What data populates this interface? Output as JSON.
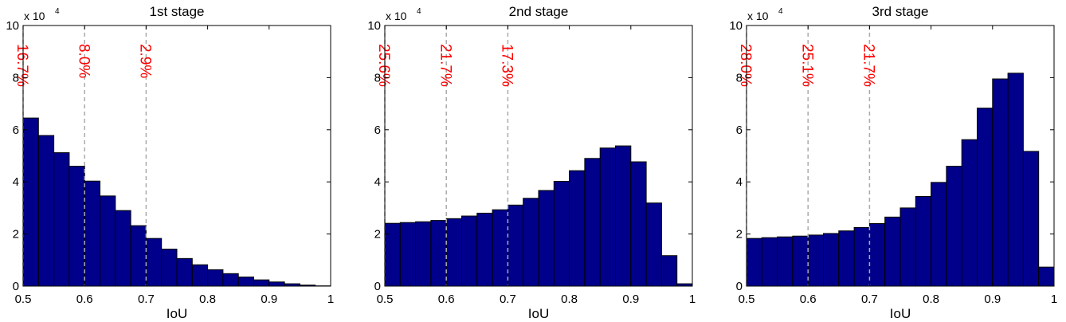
{
  "figure": {
    "xlabel": "IoU",
    "exponent_label": "x 10",
    "exponent_power": "4",
    "bar_color": "#00008B",
    "threshold_line_color": "#aaaaaa",
    "percent_label_color": "#ff0000"
  },
  "chart_data": [
    {
      "type": "bar",
      "title": "1st stage",
      "xlabel": "IoU",
      "ylabel": "",
      "xlim": [
        0.5,
        1.0
      ],
      "ylim": [
        0,
        100000
      ],
      "y_scale_factor": 10000,
      "bin_width": 0.025,
      "xticks": [
        "0.5",
        "0.6",
        "0.7",
        "0.8",
        "0.9",
        "1"
      ],
      "yticks": [
        "0",
        "2",
        "4",
        "6",
        "8",
        "10"
      ],
      "bin_starts": [
        0.5,
        0.525,
        0.55,
        0.575,
        0.6,
        0.625,
        0.65,
        0.675,
        0.7,
        0.725,
        0.75,
        0.775,
        0.8,
        0.825,
        0.85,
        0.875,
        0.9,
        0.925,
        0.95,
        0.975
      ],
      "values": [
        64500,
        57800,
        51200,
        46000,
        40300,
        34600,
        29000,
        23200,
        18300,
        14200,
        10600,
        8200,
        6300,
        4800,
        3500,
        2400,
        1600,
        900,
        400,
        100
      ],
      "thresholds": [
        {
          "x": 0.5,
          "label": "16.7%"
        },
        {
          "x": 0.6,
          "label": "8.0%"
        },
        {
          "x": 0.7,
          "label": "2.9%"
        }
      ]
    },
    {
      "type": "bar",
      "title": "2nd stage",
      "xlabel": "IoU",
      "ylabel": "",
      "xlim": [
        0.5,
        1.0
      ],
      "ylim": [
        0,
        100000
      ],
      "y_scale_factor": 10000,
      "bin_width": 0.025,
      "xticks": [
        "0.5",
        "0.6",
        "0.7",
        "0.8",
        "0.9",
        "1"
      ],
      "yticks": [
        "0",
        "2",
        "4",
        "6",
        "8",
        "10"
      ],
      "bin_starts": [
        0.5,
        0.525,
        0.55,
        0.575,
        0.6,
        0.625,
        0.65,
        0.675,
        0.7,
        0.725,
        0.75,
        0.775,
        0.8,
        0.825,
        0.85,
        0.875,
        0.9,
        0.925,
        0.95,
        0.975
      ],
      "values": [
        24100,
        24400,
        24700,
        25200,
        25900,
        26900,
        28000,
        29300,
        31100,
        33700,
        36700,
        40200,
        44300,
        49000,
        53000,
        53800,
        47700,
        31900,
        11700,
        900
      ],
      "thresholds": [
        {
          "x": 0.5,
          "label": "25.6%"
        },
        {
          "x": 0.6,
          "label": "21.7%"
        },
        {
          "x": 0.7,
          "label": "17.3%"
        }
      ]
    },
    {
      "type": "bar",
      "title": "3rd stage",
      "xlabel": "IoU",
      "ylabel": "",
      "xlim": [
        0.5,
        1.0
      ],
      "ylim": [
        0,
        100000
      ],
      "y_scale_factor": 10000,
      "bin_width": 0.025,
      "xticks": [
        "0.5",
        "0.6",
        "0.7",
        "0.8",
        "0.9",
        "1"
      ],
      "yticks": [
        "0",
        "2",
        "4",
        "6",
        "8",
        "10"
      ],
      "bin_starts": [
        0.5,
        0.525,
        0.55,
        0.575,
        0.6,
        0.625,
        0.65,
        0.675,
        0.7,
        0.725,
        0.75,
        0.775,
        0.8,
        0.825,
        0.85,
        0.875,
        0.9,
        0.925,
        0.95,
        0.975
      ],
      "values": [
        18300,
        18600,
        18900,
        19200,
        19600,
        20200,
        21200,
        22500,
        24000,
        26500,
        30000,
        34400,
        39800,
        46000,
        56200,
        68300,
        79500,
        81700,
        51700,
        7300
      ],
      "thresholds": [
        {
          "x": 0.5,
          "label": "28.0%"
        },
        {
          "x": 0.6,
          "label": "25.1%"
        },
        {
          "x": 0.7,
          "label": "21.7%"
        }
      ]
    }
  ]
}
